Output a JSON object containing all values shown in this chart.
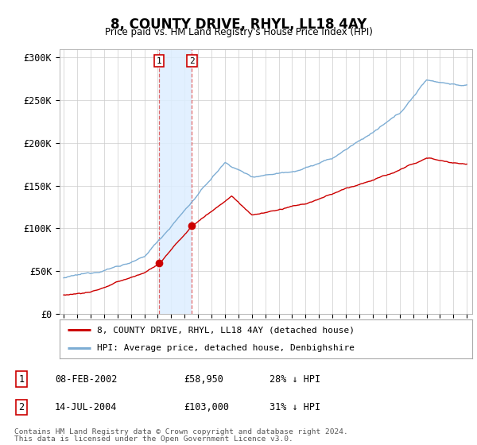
{
  "title": "8, COUNTY DRIVE, RHYL, LL18 4AY",
  "subtitle": "Price paid vs. HM Land Registry's House Price Index (HPI)",
  "yticks": [
    0,
    50000,
    100000,
    150000,
    200000,
    250000,
    300000
  ],
  "ytick_labels": [
    "£0",
    "£50K",
    "£100K",
    "£150K",
    "£200K",
    "£250K",
    "£300K"
  ],
  "xlim_start": 1994.7,
  "xlim_end": 2025.4,
  "ylim_min": 0,
  "ylim_max": 310000,
  "legend_line1": "8, COUNTY DRIVE, RHYL, LL18 4AY (detached house)",
  "legend_line2": "HPI: Average price, detached house, Denbighshire",
  "transaction1_date": 2002.1,
  "transaction1_price": 58950,
  "transaction2_date": 2004.54,
  "transaction2_price": 103000,
  "table_rows": [
    [
      "1",
      "08-FEB-2002",
      "£58,950",
      "28% ↓ HPI"
    ],
    [
      "2",
      "14-JUL-2004",
      "£103,000",
      "31% ↓ HPI"
    ]
  ],
  "footnote1": "Contains HM Land Registry data © Crown copyright and database right 2024.",
  "footnote2": "This data is licensed under the Open Government Licence v3.0.",
  "highlight_x1": 2002.1,
  "highlight_x2": 2004.54,
  "line_color_red": "#cc0000",
  "line_color_blue": "#7dadd4",
  "highlight_color": "#ddeeff",
  "bg_color": "#ffffff"
}
